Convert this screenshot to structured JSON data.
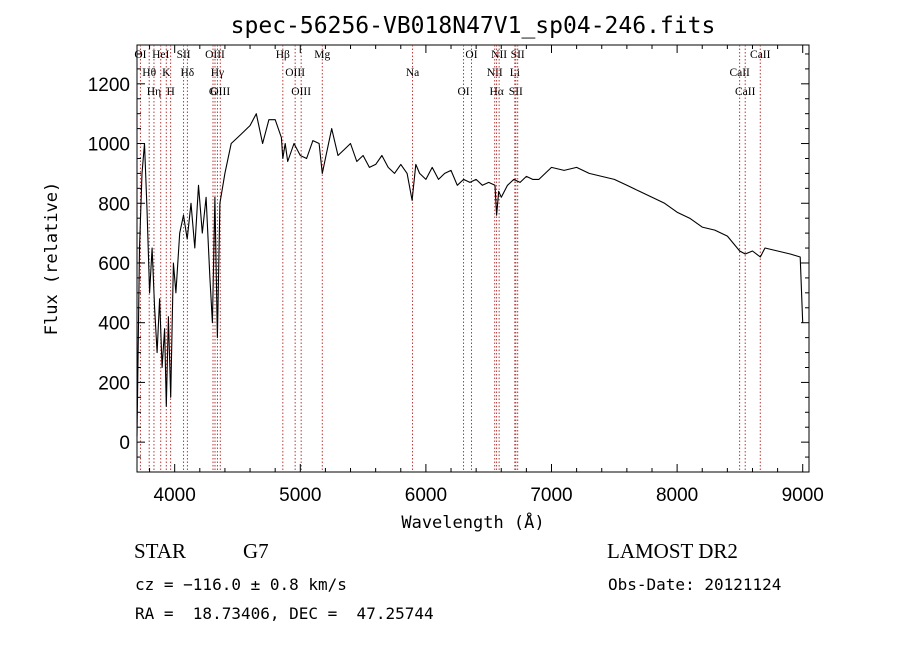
{
  "chart_data": {
    "type": "line",
    "title": "spec-56256-VB018N47V1_sp04-246.fits",
    "xlabel": "Wavelength (Å)",
    "ylabel": "Flux (relative)",
    "xlim": [
      3700,
      9050
    ],
    "ylim": [
      -100,
      1330
    ],
    "x_ticks": [
      4000,
      5000,
      6000,
      7000,
      8000,
      9000
    ],
    "y_ticks": [
      0,
      200,
      400,
      600,
      800,
      1000,
      1200
    ],
    "grid": false,
    "series": [
      {
        "x": [
          3700,
          3720,
          3740,
          3760,
          3780,
          3800,
          3820,
          3840,
          3860,
          3880,
          3900,
          3920,
          3933,
          3950,
          3968,
          3990,
          4010,
          4040,
          4070,
          4100,
          4130,
          4160,
          4190,
          4220,
          4250,
          4280,
          4300,
          4320,
          4340,
          4360,
          4400,
          4450,
          4500,
          4550,
          4600,
          4650,
          4700,
          4750,
          4800,
          4850,
          4861,
          4880,
          4900,
          4950,
          5000,
          5050,
          5100,
          5150,
          5175,
          5200,
          5250,
          5300,
          5350,
          5400,
          5450,
          5500,
          5550,
          5600,
          5650,
          5700,
          5750,
          5800,
          5850,
          5890,
          5920,
          5950,
          6000,
          6050,
          6100,
          6150,
          6200,
          6250,
          6300,
          6350,
          6400,
          6450,
          6500,
          6550,
          6563,
          6580,
          6600,
          6650,
          6700,
          6750,
          6800,
          6850,
          6900,
          6950,
          7000,
          7100,
          7200,
          7300,
          7400,
          7500,
          7600,
          7700,
          7800,
          7900,
          8000,
          8100,
          8200,
          8300,
          8400,
          8498,
          8542,
          8600,
          8662,
          8700,
          8800,
          8900,
          8980,
          9000
        ],
        "y": [
          20,
          650,
          900,
          1000,
          780,
          500,
          650,
          450,
          300,
          480,
          250,
          380,
          120,
          420,
          150,
          600,
          500,
          700,
          760,
          680,
          800,
          650,
          860,
          700,
          820,
          550,
          400,
          820,
          350,
          800,
          900,
          1000,
          1020,
          1040,
          1060,
          1100,
          1000,
          1080,
          1080,
          1020,
          950,
          1000,
          940,
          1000,
          960,
          950,
          1010,
          1000,
          900,
          950,
          1050,
          960,
          980,
          1000,
          940,
          960,
          920,
          930,
          960,
          920,
          900,
          930,
          900,
          810,
          930,
          900,
          880,
          920,
          880,
          900,
          910,
          860,
          880,
          870,
          880,
          860,
          870,
          860,
          760,
          840,
          820,
          860,
          880,
          870,
          890,
          880,
          880,
          900,
          920,
          910,
          920,
          900,
          890,
          880,
          860,
          840,
          820,
          800,
          770,
          750,
          720,
          710,
          690,
          640,
          630,
          640,
          620,
          650,
          640,
          630,
          620,
          400
        ]
      }
    ],
    "lines": [
      {
        "name": "OI",
        "x": 3727
      },
      {
        "name": "Hθ",
        "x": 3797
      },
      {
        "name": "Hη",
        "x": 3835
      },
      {
        "name": "HeI",
        "x": 3889
      },
      {
        "name": "K",
        "x": 3933
      },
      {
        "name": "H",
        "x": 3968
      },
      {
        "name": "SII",
        "x": 4071
      },
      {
        "name": "Hδ",
        "x": 4101
      },
      {
        "name": "G",
        "x": 4305
      },
      {
        "name": "OIII",
        "x": 4321
      },
      {
        "name": "Hγ",
        "x": 4340
      },
      {
        "name": "OIII",
        "x": 4363
      },
      {
        "name": "Hβ",
        "x": 4861
      },
      {
        "name": "OIII",
        "x": 4959
      },
      {
        "name": "OIII",
        "x": 5007
      },
      {
        "name": "Mg",
        "x": 5175
      },
      {
        "name": "Na",
        "x": 5894
      },
      {
        "name": "OI",
        "x": 6300
      },
      {
        "name": "OI",
        "x": 6363
      },
      {
        "name": "NII",
        "x": 6548
      },
      {
        "name": "Hα",
        "x": 6563
      },
      {
        "name": "NII",
        "x": 6583
      },
      {
        "name": "Li",
        "x": 6708
      },
      {
        "name": "SII",
        "x": 6716
      },
      {
        "name": "SII",
        "x": 6731
      },
      {
        "name": "CaII",
        "x": 8498
      },
      {
        "name": "CaII",
        "x": 8542
      },
      {
        "name": "CaII",
        "x": 8662
      }
    ],
    "annotations": {
      "class": "STAR",
      "subclass": "G7",
      "survey": "LAMOST DR2",
      "cz": "cz = −116.0 ± 0.8 km/s",
      "obs_date": "Obs-Date: 20121124",
      "coords": "RA =  18.73406, DEC =  47.25744"
    }
  }
}
